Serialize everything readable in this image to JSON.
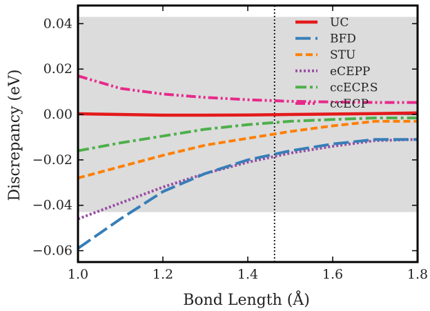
{
  "chart_data": {
    "type": "line",
    "xlabel": "Bond Length (Å)",
    "ylabel": "Discrepancy (eV)",
    "xlim": [
      1.0,
      1.8
    ],
    "ylim": [
      -0.065,
      0.048
    ],
    "xticks": [
      1.0,
      1.2,
      1.4,
      1.6,
      1.8
    ],
    "xtick_labels": [
      "1.0",
      "1.2",
      "1.4",
      "1.6",
      "1.8"
    ],
    "yticks": [
      -0.06,
      -0.04,
      -0.02,
      0.0,
      0.02,
      0.04
    ],
    "ytick_labels": [
      "−0.06",
      "−0.04",
      "−0.02",
      "0.00",
      "0.02",
      "0.04"
    ],
    "grid": false,
    "legend_position": "top-right",
    "shaded_band": {
      "ymin": -0.043,
      "ymax": 0.043,
      "color": "#dcdcdc"
    },
    "zero_line": {
      "y": 0.0,
      "color": "#000000"
    },
    "vertical_line": {
      "x": 1.463,
      "style": "dotted",
      "color": "#000000"
    },
    "series": [
      {
        "name": "UC",
        "color": "#e41a1c",
        "style": "solid",
        "x": [
          1.0,
          1.1,
          1.2,
          1.3,
          1.4,
          1.5,
          1.6,
          1.7,
          1.8
        ],
        "y": [
          0.0003,
          0.0,
          -0.0003,
          -0.0003,
          -0.0002,
          0.0,
          0.0002,
          0.0004,
          0.0007
        ]
      },
      {
        "name": "BFD",
        "color": "#377eb8",
        "style": "longdash",
        "x": [
          1.0,
          1.1,
          1.2,
          1.3,
          1.4,
          1.5,
          1.6,
          1.7,
          1.8
        ],
        "y": [
          -0.059,
          -0.046,
          -0.034,
          -0.026,
          -0.02,
          -0.016,
          -0.013,
          -0.011,
          -0.011
        ]
      },
      {
        "name": "STU",
        "color": "#ff7f00",
        "style": "dashed",
        "x": [
          1.0,
          1.1,
          1.2,
          1.3,
          1.4,
          1.5,
          1.6,
          1.7,
          1.8
        ],
        "y": [
          -0.028,
          -0.023,
          -0.018,
          -0.0135,
          -0.0105,
          -0.0075,
          -0.005,
          -0.003,
          -0.003
        ]
      },
      {
        "name": "eCEPP",
        "color": "#984ea3",
        "style": "dotted",
        "x": [
          1.0,
          1.1,
          1.2,
          1.3,
          1.4,
          1.5,
          1.6,
          1.7,
          1.8
        ],
        "y": [
          -0.046,
          -0.039,
          -0.032,
          -0.026,
          -0.021,
          -0.017,
          -0.014,
          -0.0115,
          -0.011
        ]
      },
      {
        "name": "ccECP.S",
        "color": "#4daf4a",
        "style": "dashdot",
        "x": [
          1.0,
          1.1,
          1.2,
          1.3,
          1.4,
          1.5,
          1.6,
          1.7,
          1.8
        ],
        "y": [
          -0.016,
          -0.0125,
          -0.0095,
          -0.0065,
          -0.0045,
          -0.003,
          -0.0022,
          -0.0015,
          -0.0015
        ]
      },
      {
        "name": "ccECP",
        "color": "#e7298a",
        "style": "dashdotdot",
        "x": [
          1.0,
          1.1,
          1.2,
          1.3,
          1.4,
          1.5,
          1.6,
          1.7,
          1.8
        ],
        "y": [
          0.017,
          0.0115,
          0.009,
          0.0075,
          0.0065,
          0.0058,
          0.0055,
          0.0053,
          0.0053
        ]
      }
    ]
  }
}
